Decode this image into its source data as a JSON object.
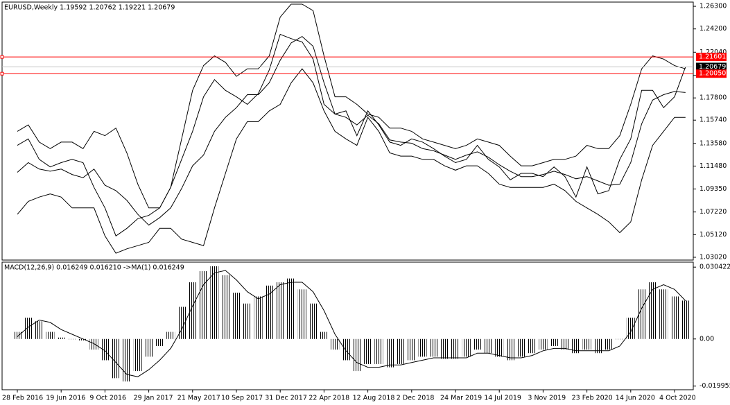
{
  "chart_data": [
    {
      "type": "line",
      "title": "EURUSD,Weekly  1.19592 1.20762 1.19221 1.20679",
      "categories": [
        "28 Feb 2016",
        null,
        null,
        null,
        "19 Jun 2016",
        null,
        null,
        null,
        "9 Oct 2016",
        null,
        null,
        null,
        "29 Jan 2017",
        null,
        null,
        null,
        "21 May 2017",
        null,
        null,
        null,
        "10 Sep 2017",
        null,
        null,
        null,
        "31 Dec 2017",
        null,
        null,
        null,
        "22 Apr 2018",
        null,
        null,
        null,
        "12 Aug 2018",
        null,
        null,
        null,
        "2 Dec 2018",
        null,
        null,
        null,
        "24 Mar 2019",
        null,
        null,
        null,
        "14 Jul 2019",
        null,
        null,
        null,
        "3 Nov 2019",
        null,
        null,
        null,
        "23 Feb 2020",
        null,
        null,
        null,
        "14 Jun 2020",
        null,
        null,
        null,
        "4 Oct 2020",
        null
      ],
      "series": [
        {
          "color": "#000000",
          "values": [
            1.147,
            1.153,
            1.137,
            1.131,
            1.137,
            1.137,
            1.131,
            1.147,
            1.143,
            1.15,
            1.127,
            1.098,
            1.076,
            1.076,
            1.095,
            1.14,
            1.185,
            1.208,
            1.217,
            1.211,
            1.198,
            1.205,
            1.205,
            1.217,
            1.253,
            1.265,
            1.265,
            1.259,
            1.217,
            1.179,
            1.179,
            1.172,
            1.163,
            1.16,
            1.15,
            1.15,
            1.147,
            1.14,
            1.137,
            1.134,
            1.131,
            1.134,
            1.14,
            1.137,
            1.134,
            1.124,
            1.115,
            1.115,
            1.118,
            1.121,
            1.121,
            1.124,
            1.134,
            1.131,
            1.131,
            1.143,
            1.172,
            1.205,
            1.217,
            1.214,
            1.208,
            1.205
          ]
        },
        {
          "color": "#000000",
          "values": [
            1.109,
            1.118,
            1.112,
            1.11,
            1.112,
            1.107,
            1.104,
            1.112,
            1.097,
            1.092,
            1.083,
            1.07,
            1.06,
            1.067,
            1.076,
            1.094,
            1.115,
            1.125,
            1.147,
            1.16,
            1.169,
            1.181,
            1.181,
            1.192,
            1.213,
            1.229,
            1.235,
            1.226,
            1.192,
            1.163,
            1.16,
            1.153,
            1.162,
            1.154,
            1.139,
            1.137,
            1.136,
            1.131,
            1.129,
            1.125,
            1.121,
            1.125,
            1.128,
            1.123,
            1.116,
            1.11,
            1.105,
            1.105,
            1.107,
            1.11,
            1.107,
            1.103,
            1.105,
            1.101,
            1.097,
            1.098,
            1.118,
            1.154,
            1.176,
            1.181,
            1.184,
            1.183
          ]
        },
        {
          "color": "#000000",
          "values": [
            1.07,
            1.082,
            1.086,
            1.089,
            1.086,
            1.076,
            1.076,
            1.076,
            1.05,
            1.034,
            1.038,
            1.041,
            1.044,
            1.057,
            1.057,
            1.047,
            1.044,
            1.041,
            1.076,
            1.108,
            1.14,
            1.156,
            1.156,
            1.166,
            1.172,
            1.192,
            1.205,
            1.192,
            1.166,
            1.147,
            1.14,
            1.134,
            1.16,
            1.147,
            1.127,
            1.124,
            1.124,
            1.121,
            1.121,
            1.115,
            1.111,
            1.115,
            1.115,
            1.108,
            1.098,
            1.095,
            1.095,
            1.095,
            1.095,
            1.098,
            1.092,
            1.082,
            1.076,
            1.07,
            1.063,
            1.053,
            1.063,
            1.102,
            1.134,
            1.147,
            1.16,
            1.16
          ]
        },
        {
          "color": "#000000",
          "values": [
            1.134,
            1.14,
            1.121,
            1.114,
            1.118,
            1.121,
            1.118,
            1.095,
            1.076,
            1.05,
            1.057,
            1.066,
            1.069,
            1.076,
            1.095,
            1.121,
            1.147,
            1.179,
            1.195,
            1.185,
            1.179,
            1.172,
            1.182,
            1.204,
            1.237,
            1.233,
            1.23,
            1.214,
            1.172,
            1.163,
            1.166,
            1.143,
            1.166,
            1.153,
            1.137,
            1.134,
            1.14,
            1.137,
            1.131,
            1.124,
            1.118,
            1.121,
            1.134,
            1.121,
            1.114,
            1.102,
            1.108,
            1.108,
            1.105,
            1.114,
            1.105,
            1.086,
            1.114,
            1.089,
            1.092,
            1.121,
            1.14,
            1.185,
            1.185,
            1.169,
            1.179,
            1.20679
          ]
        }
      ],
      "ylim": [
        1.0276,
        1.2669
      ],
      "yticks": [
        {
          "value": 1.263,
          "label": "1.26300"
        },
        {
          "value": 1.242,
          "label": "1.24200"
        },
        {
          "value": 1.2204,
          "label": "1.22040"
        },
        {
          "value": 1.1988,
          "label": "1.19880"
        },
        {
          "value": 1.178,
          "label": "1.17800"
        },
        {
          "value": 1.1574,
          "label": "1.15740"
        },
        {
          "value": 1.1358,
          "label": "1.13580"
        },
        {
          "value": 1.1148,
          "label": "1.11480"
        },
        {
          "value": 1.0935,
          "label": "1.09350"
        },
        {
          "value": 1.0722,
          "label": "1.07220"
        },
        {
          "value": 1.0512,
          "label": "1.05120"
        },
        {
          "value": 1.0302,
          "label": "1.03020"
        }
      ],
      "hlines": [
        {
          "value": 1.21601,
          "color": "#ff0000"
        },
        {
          "value": 1.20679,
          "color": "#000000",
          "line_color": "#c0c0c0"
        },
        {
          "value": 1.2005,
          "label": "1.20050",
          "color": "#ff0000"
        }
      ]
    },
    {
      "type": "bar",
      "title": "MACD(12,26,9) 0.016249 0.016210 ->MA(1) 0.016249",
      "series": [
        {
          "color": "#000000",
          "values": [
            0.003,
            0.009,
            0.0075,
            0.003,
            0.0006,
            0,
            -0.0006,
            -0.0045,
            -0.009,
            -0.0166,
            -0.018,
            -0.0136,
            -0.0075,
            -0.003,
            0.003,
            0.0136,
            0.024,
            0.0287,
            0.0308,
            0.027,
            0.0196,
            0.015,
            0.018,
            0.0226,
            0.024,
            0.0256,
            0.021,
            0.015,
            0.003,
            -0.0045,
            -0.009,
            -0.0136,
            -0.0106,
            -0.0106,
            -0.012,
            -0.0106,
            -0.009,
            -0.0075,
            -0.0075,
            -0.0084,
            -0.0084,
            -0.0075,
            -0.0045,
            -0.006,
            -0.0075,
            -0.009,
            -0.0075,
            -0.006,
            -0.0045,
            -0.003,
            -0.0045,
            -0.006,
            -0.0045,
            -0.006,
            -0.0045,
            0,
            0.009,
            0.021,
            0.024,
            0.021,
            0.018,
            0.016249
          ]
        },
        {
          "color": "#000000",
          "type": "line",
          "values": [
            0.001,
            0.005,
            0.008,
            0.007,
            0.004,
            0.002,
            0,
            -0.002,
            -0.005,
            -0.01,
            -0.015,
            -0.016,
            -0.013,
            -0.009,
            -0.004,
            0.004,
            0.014,
            0.023,
            0.028,
            0.029,
            0.025,
            0.02,
            0.017,
            0.019,
            0.023,
            0.024,
            0.024,
            0.02,
            0.012,
            0.002,
            -0.005,
            -0.01,
            -0.012,
            -0.012,
            -0.011,
            -0.011,
            -0.01,
            -0.009,
            -0.008,
            -0.008,
            -0.008,
            -0.008,
            -0.006,
            -0.006,
            -0.007,
            -0.008,
            -0.008,
            -0.007,
            -0.005,
            -0.004,
            -0.004,
            -0.005,
            -0.005,
            -0.005,
            -0.005,
            -0.003,
            0.003,
            0.013,
            0.021,
            0.023,
            0.021,
            0.01621
          ]
        }
      ],
      "ylim": [
        -0.0215,
        0.03253
      ],
      "yticks": [
        0.030422,
        {
          "value": 0,
          "label": "0.00"
        },
        -0.019955
      ]
    }
  ]
}
